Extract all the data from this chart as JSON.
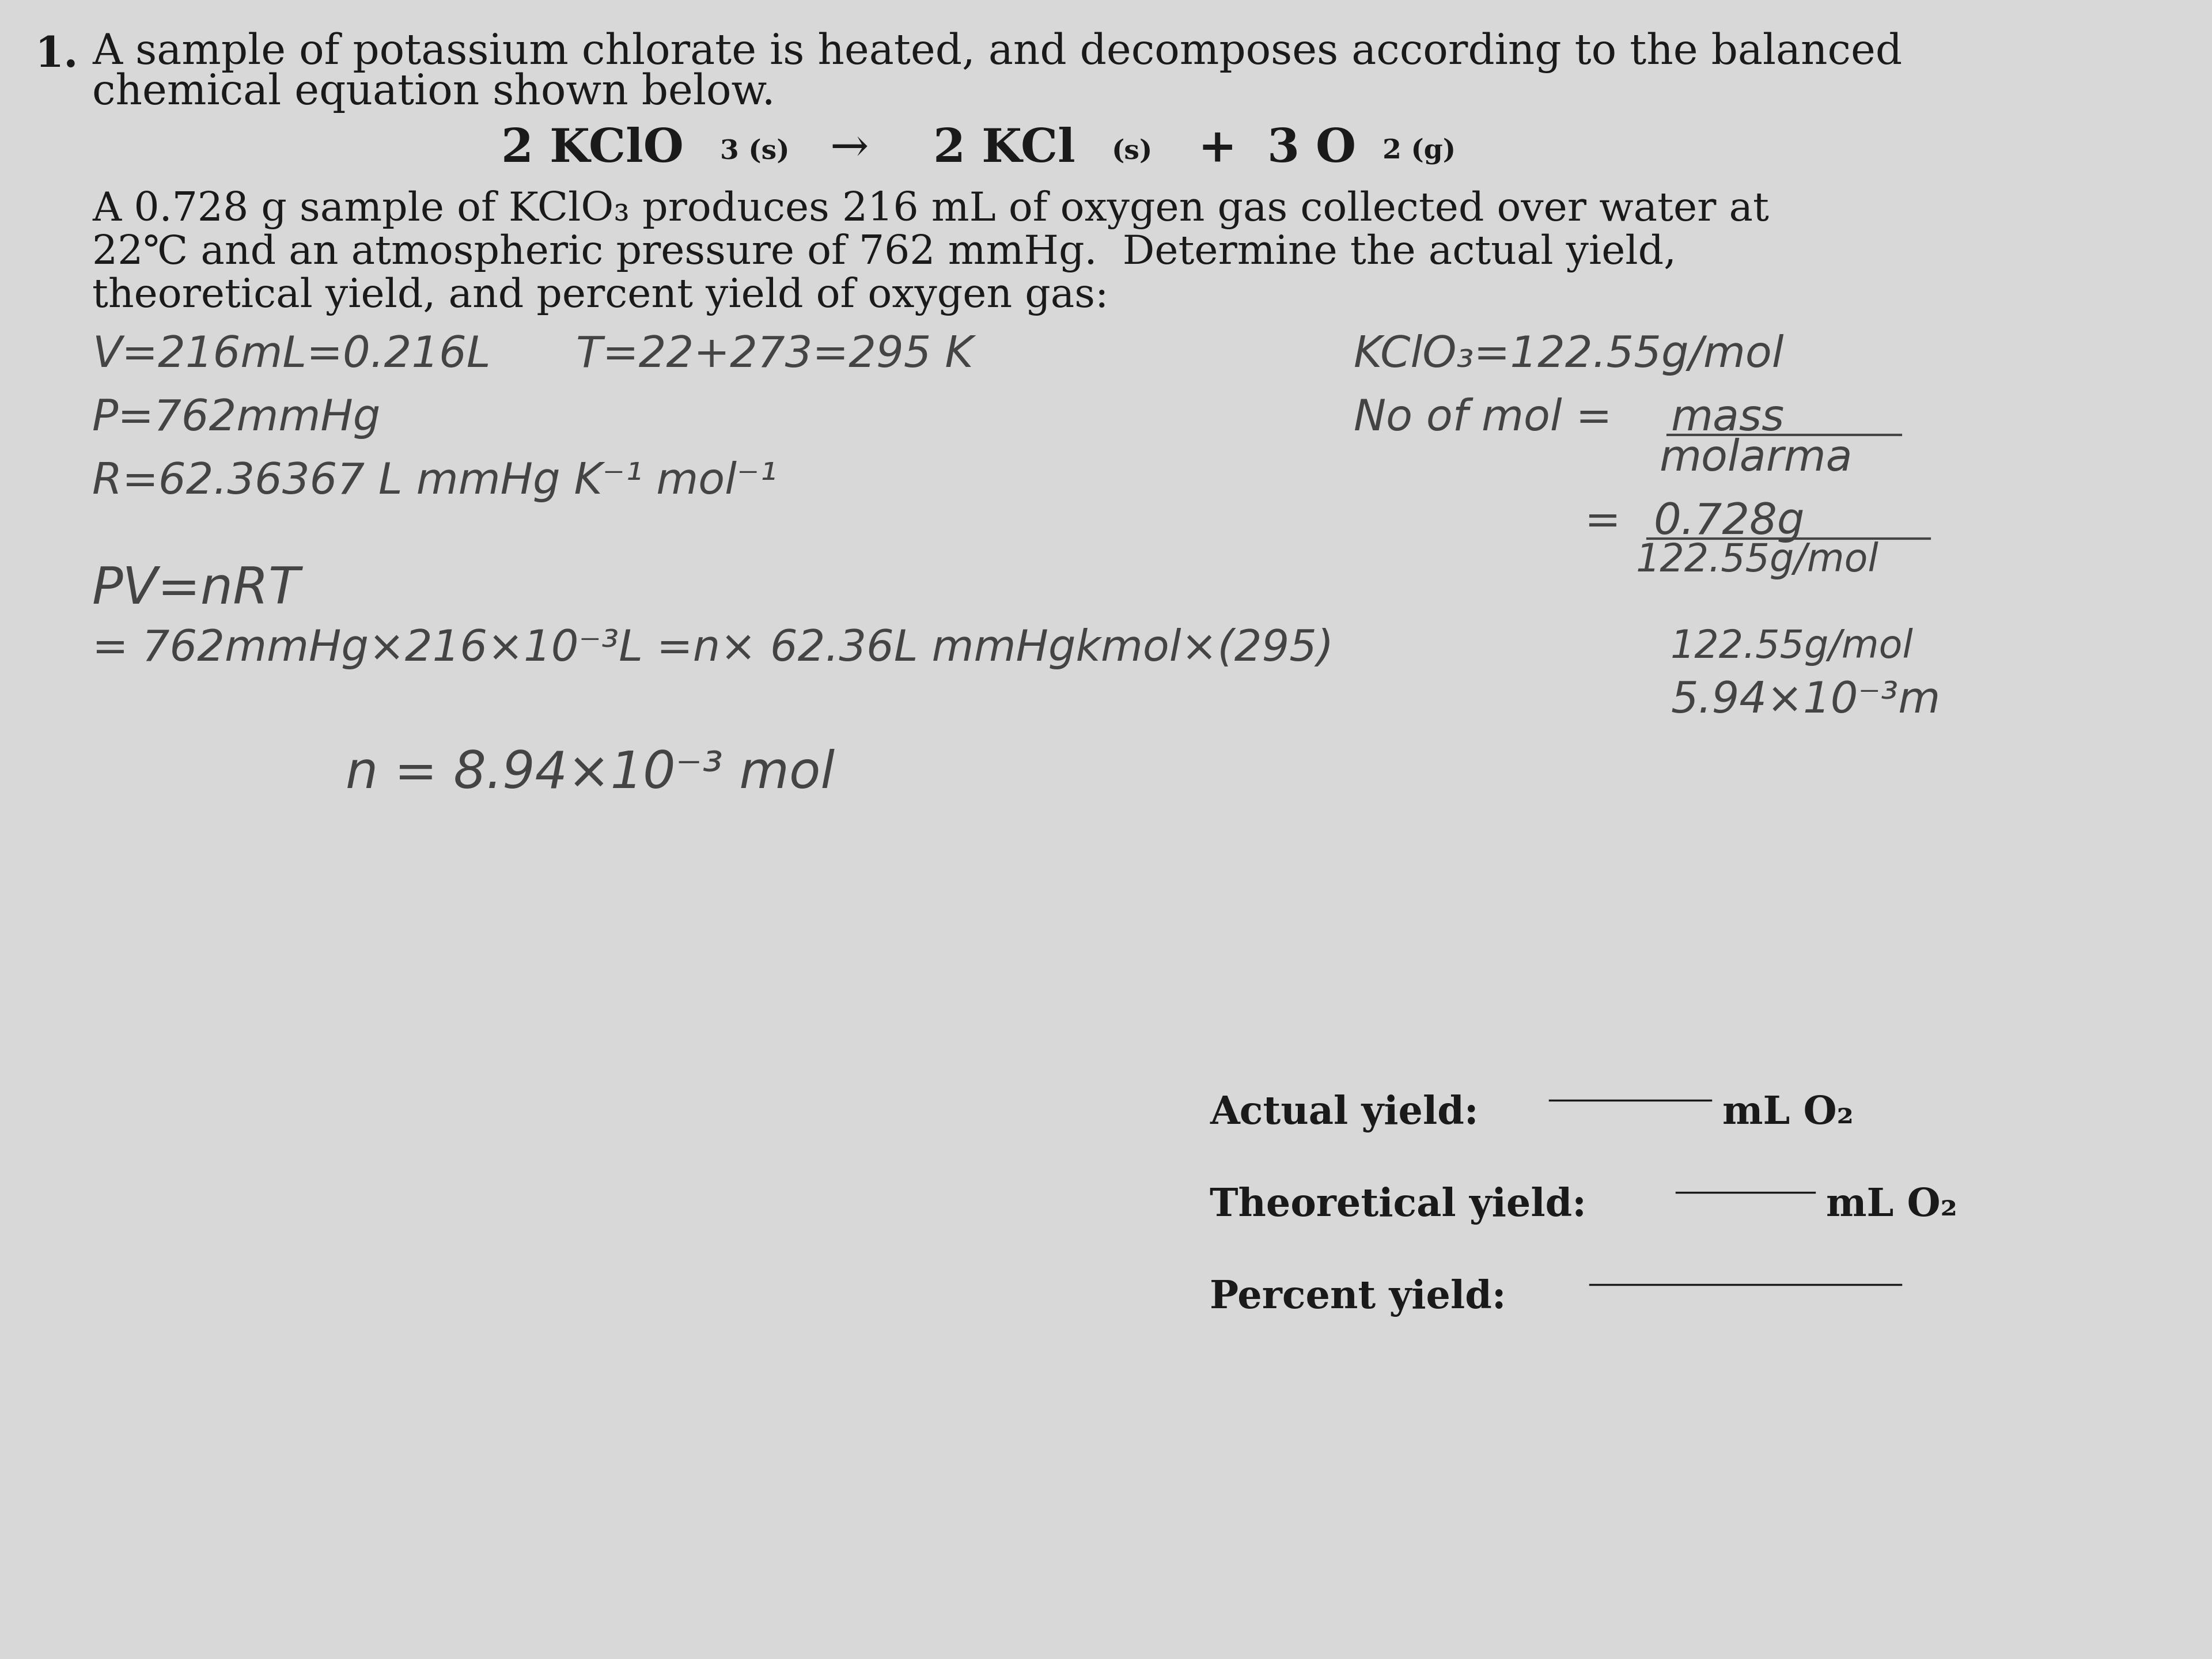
{
  "bg_color": "#d8d8d8",
  "text_color": "#1a1a1a",
  "handwritten_color": "#444444",
  "font_size_intro": 52,
  "font_size_equation": 58,
  "font_size_equation_sub": 34,
  "font_size_problem": 50,
  "font_size_handwritten": 54,
  "font_size_yield": 48,
  "title_number": "1.",
  "intro_line1": "A sample of potassium chlorate is heated, and decomposes according to the balanced",
  "intro_line2": "chemical equation shown below.",
  "problem_line1": "A 0.728 g sample of KClO₃ produces 216 mL of oxygen gas collected over water at",
  "problem_line2": "22℃ and an atmospheric pressure of 762 mmHg.  Determine the actual yield,",
  "problem_line3": "theoretical yield, and percent yield of oxygen gas:",
  "hw1_left": "V=216mL=0.216L",
  "hw1_mid": "T=22+273=295 K",
  "hw1_right": "KClO₃=122.55g/mol",
  "hw2_left": "P=762mmHg",
  "hw2_right_label": "No of mol =",
  "hw2_right_num": "mass",
  "hw2_right_den": "molarma",
  "hw3_left": "R=62.36367 L mmHg K⁻¹ mol⁻¹",
  "frac_num": "0.728g",
  "frac_den": "122.55g/mol",
  "hw_pv": "PV=nRT",
  "hw_eq": "= 762mmHg×216×10⁻³L =n× 62.36L mmHgkmol×(295)",
  "hw_eq_right": "122.55g/mol",
  "hw_eq2_right": "5.94×10⁻³m",
  "hw_n": "n = 8.94×10⁻³ mol",
  "actual_label": "Actual yield:",
  "actual_unit": "mL O₂",
  "theoretical_label": "Theoretical yield:",
  "theoretical_unit": "mL O₂",
  "percent_label": "Percent yield:"
}
